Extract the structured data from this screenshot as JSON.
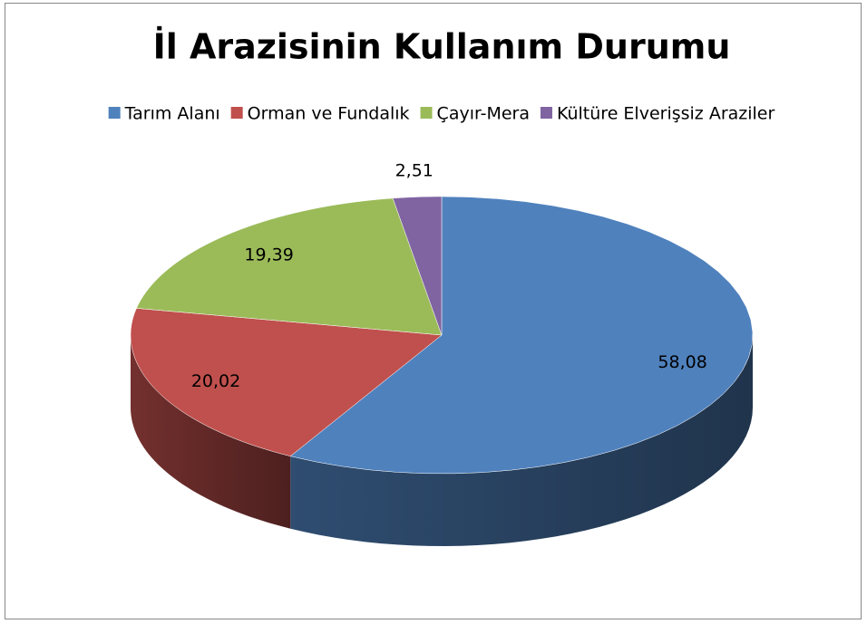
{
  "chart_data": {
    "type": "pie3d",
    "title": "İl Arazisinin Kullanım Durumu",
    "categories": [
      "Tarım Alanı",
      "Orman ve Fundalık",
      "Çayır-Mera",
      "Kültüre Elverişsiz Araziler"
    ],
    "values": [
      58.08,
      20.02,
      19.39,
      2.51
    ],
    "value_labels": [
      "58,08",
      "20,02",
      "19,39",
      "2,51"
    ],
    "colors": [
      "#4f81bd",
      "#c0504d",
      "#9bbb59",
      "#8064a2"
    ],
    "legend": "top"
  }
}
